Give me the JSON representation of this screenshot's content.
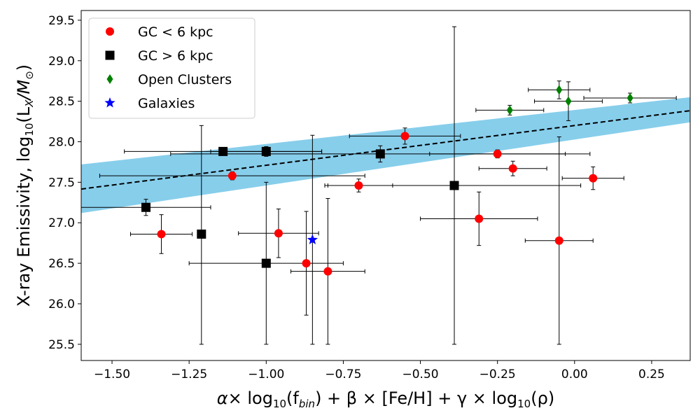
{
  "chart_data": {
    "type": "scatter",
    "xlabel": "α × log10(fbin) + β × [Fe/H] + γ × log10(ρ)",
    "xlabel_parts": {
      "alpha": "α",
      "times1": "× log",
      "sub1": "10",
      "fbin_open": "(f",
      "fbin_sub": "bin",
      "plus1": ") + β × [Fe/H] + γ × log",
      "sub2": "10",
      "rho": "(ρ)"
    },
    "ylabel": "X-ray Emissivity, log10(LX/M☉)",
    "ylabel_parts": {
      "main": "X-ray Emissivity, log",
      "sub": "10",
      "open": "(L",
      "lsub": "X",
      "slash": "/M",
      "sun": "⊙",
      "close": ")"
    },
    "xlim": [
      -1.6,
      0.375
    ],
    "ylim": [
      25.3,
      29.62
    ],
    "xticks": [
      -1.5,
      -1.25,
      -1.0,
      -0.75,
      -0.5,
      -0.25,
      0.0,
      0.25
    ],
    "xtick_labels": [
      "−1.50",
      "−1.25",
      "−1.00",
      "−0.75",
      "−0.50",
      "−0.25",
      "0.00",
      "0.25"
    ],
    "yticks": [
      25.5,
      26.0,
      26.5,
      27.0,
      27.5,
      28.0,
      28.5,
      29.0,
      29.5
    ],
    "ytick_labels": [
      "25.5",
      "26.0",
      "26.5",
      "27.0",
      "27.5",
      "28.0",
      "28.5",
      "29.0",
      "29.5"
    ],
    "fit_line": {
      "slope": 0.49,
      "intercept": 28.2,
      "color": "#000000",
      "style": "dashed"
    },
    "confidence_band": {
      "color": "#87ceeb",
      "x": [
        -1.6,
        0.375
      ],
      "lower": [
        27.12,
        28.24
      ],
      "upper": [
        27.72,
        28.55
      ]
    },
    "legend": {
      "position": "upper-left",
      "entries": [
        {
          "label": "GC < 6 kpc",
          "marker": "circle",
          "color": "#ff0000"
        },
        {
          "label": "GC > 6 kpc",
          "marker": "square",
          "color": "#000000"
        },
        {
          "label": "Open Clusters",
          "marker": "diamond",
          "color": "#008000"
        },
        {
          "label": "Galaxies",
          "marker": "star",
          "color": "#0000ff"
        }
      ]
    },
    "series": [
      {
        "name": "GC < 6 kpc",
        "marker": "circle",
        "color": "#ff0000",
        "points": [
          {
            "x": -1.34,
            "y": 26.86,
            "xerr": [
              0.1,
              0.1
            ],
            "yerr": [
              0.24,
              0.24
            ]
          },
          {
            "x": -1.11,
            "y": 27.58,
            "xerr": [
              0.43,
              0.43
            ],
            "yerr": [
              0.05,
              0.05
            ]
          },
          {
            "x": -0.96,
            "y": 26.87,
            "xerr": [
              0.13,
              0.13
            ],
            "yerr": [
              0.3,
              0.3
            ]
          },
          {
            "x": -0.87,
            "y": 26.5,
            "xerr": [
              0.0,
              0.0
            ],
            "yerr": [
              0.64,
              0.64
            ]
          },
          {
            "x": -0.8,
            "y": 26.4,
            "xerr": [
              0.12,
              0.12
            ],
            "yerr": [
              0.9,
              0.9
            ]
          },
          {
            "x": -0.7,
            "y": 27.46,
            "xerr": [
              0.11,
              0.11
            ],
            "yerr": [
              0.08,
              0.08
            ]
          },
          {
            "x": -0.55,
            "y": 28.07,
            "xerr": [
              0.18,
              0.18
            ],
            "yerr": [
              0.1,
              0.1
            ]
          },
          {
            "x": -0.31,
            "y": 27.05,
            "xerr": [
              0.19,
              0.19
            ],
            "yerr": [
              0.33,
              0.33
            ]
          },
          {
            "x": -0.25,
            "y": 27.85,
            "xerr": [
              0.22,
              0.22
            ],
            "yerr": [
              0.05,
              0.05
            ]
          },
          {
            "x": -0.2,
            "y": 27.67,
            "xerr": [
              0.11,
              0.11
            ],
            "yerr": [
              0.09,
              0.09
            ]
          },
          {
            "x": -0.05,
            "y": 26.78,
            "xerr": [
              0.11,
              0.11
            ],
            "yerr": [
              1.28,
              1.28
            ]
          },
          {
            "x": 0.06,
            "y": 27.55,
            "xerr": [
              0.1,
              0.1
            ],
            "yerr": [
              0.14,
              0.14
            ]
          }
        ]
      },
      {
        "name": "GC > 6 kpc",
        "marker": "square",
        "color": "#000000",
        "points": [
          {
            "x": -1.39,
            "y": 27.19,
            "xerr": [
              0.21,
              0.21
            ],
            "yerr": [
              0.1,
              0.1
            ]
          },
          {
            "x": -1.21,
            "y": 26.86,
            "xerr": [
              0.0,
              0.0
            ],
            "yerr": [
              1.36,
              1.34
            ]
          },
          {
            "x": -1.14,
            "y": 27.88,
            "xerr": [
              0.32,
              0.32
            ],
            "yerr": [
              0.02,
              0.02
            ]
          },
          {
            "x": -1.0,
            "y": 26.5,
            "xerr": [
              0.25,
              0.25
            ],
            "yerr": [
              1.0,
              1.0
            ]
          },
          {
            "x": -1.0,
            "y": 27.88,
            "xerr": [
              0.18,
              0.18
            ],
            "yerr": [
              0.06,
              0.06
            ]
          },
          {
            "x": -0.63,
            "y": 27.85,
            "xerr": [
              0.0,
              0.0
            ],
            "yerr": [
              0.1,
              0.1
            ]
          },
          {
            "x": -0.39,
            "y": 27.46,
            "xerr": [
              0.41,
              0.41
            ],
            "yerr": [
              1.96,
              1.96
            ]
          }
        ]
      },
      {
        "name": "Open Clusters",
        "marker": "diamond",
        "color": "#008000",
        "points": [
          {
            "x": -0.21,
            "y": 28.39,
            "xerr": [
              0.11,
              0.11
            ],
            "yerr": [
              0.06,
              0.06
            ]
          },
          {
            "x": -0.05,
            "y": 28.64,
            "xerr": [
              0.1,
              0.1
            ],
            "yerr": [
              0.11,
              0.11
            ]
          },
          {
            "x": -0.02,
            "y": 28.5,
            "xerr": [
              0.11,
              0.11
            ],
            "yerr": [
              0.24,
              0.24
            ]
          },
          {
            "x": 0.18,
            "y": 28.54,
            "xerr": [
              0.15,
              0.15
            ],
            "yerr": [
              0.06,
              0.06
            ]
          }
        ]
      },
      {
        "name": "Galaxies",
        "marker": "star",
        "color": "#0000ff",
        "points": [
          {
            "x": -0.85,
            "y": 26.79,
            "xerr": [
              0.0,
              0.0
            ],
            "yerr": [
              0.0,
              0.0
            ]
          }
        ]
      }
    ],
    "extra_xbars": [
      {
        "y": 27.85,
        "x0": -1.31,
        "x1": 0.05
      }
    ],
    "extra_ybars": [
      {
        "x": -0.85,
        "y0": 25.5,
        "y1": 28.08
      }
    ]
  }
}
